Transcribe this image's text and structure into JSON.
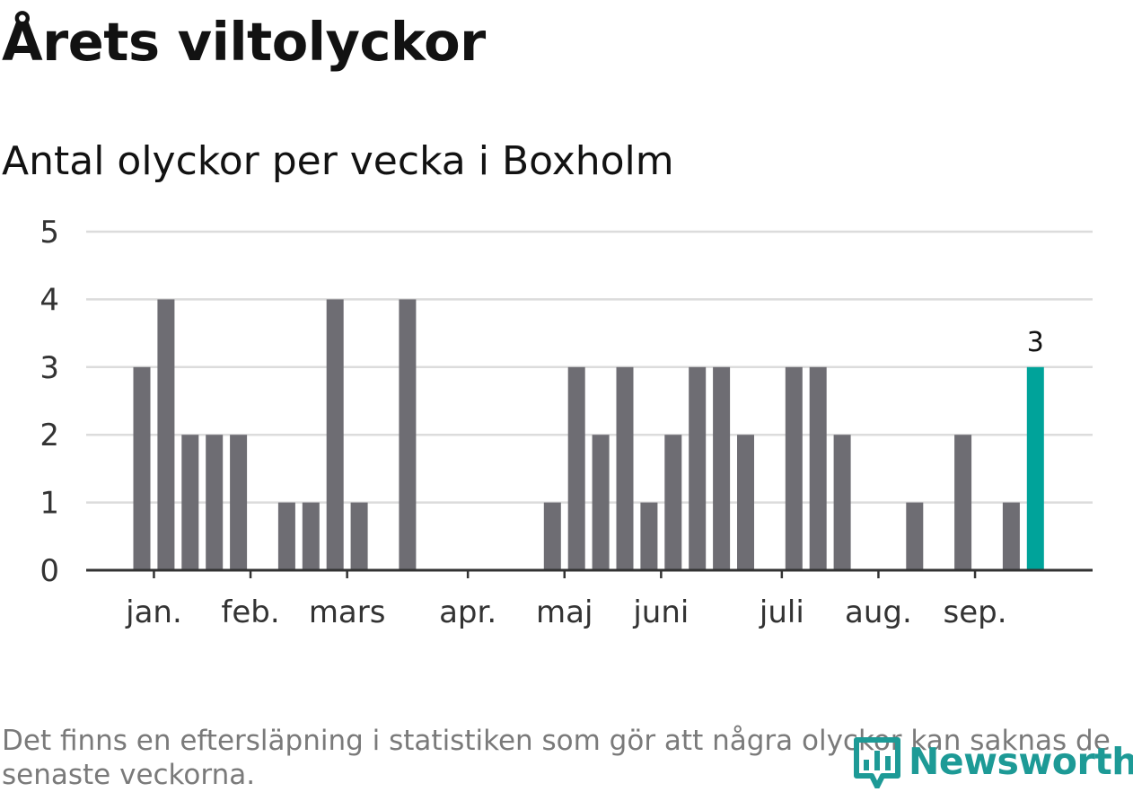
{
  "title": "Årets viltolyckor",
  "subtitle": "Antal olyckor per vecka i Boxholm",
  "footnote": "Det finns en eftersläpning i statistiken som gör att några olyckor kan saknas de senaste veckorna.",
  "logo": {
    "text": "Newsworthy",
    "icon": "bar-chart-pin-icon"
  },
  "colors": {
    "bar": "#6e6d73",
    "highlight": "#00a39a",
    "grid": "#dcdcdc",
    "axis": "#333333",
    "tick_text": "#333333",
    "logo": "#1d9a96"
  },
  "chart_data": {
    "type": "bar",
    "title": "Antal olyckor per vecka i Boxholm",
    "xlabel": "",
    "ylabel": "",
    "ylim": [
      0,
      5
    ],
    "yticks": [
      0,
      1,
      2,
      3,
      4,
      5
    ],
    "grid": true,
    "weeks": [
      1,
      2,
      3,
      4,
      5,
      6,
      7,
      8,
      9,
      10,
      11,
      12,
      13,
      14,
      15,
      16,
      17,
      18,
      19,
      20,
      21,
      22,
      23,
      24,
      25,
      26,
      27,
      28,
      29,
      30,
      31,
      32,
      33,
      34,
      35,
      36,
      37,
      38
    ],
    "values": [
      3,
      4,
      2,
      2,
      2,
      0,
      1,
      1,
      4,
      1,
      0,
      4,
      0,
      0,
      0,
      0,
      0,
      1,
      3,
      2,
      3,
      1,
      2,
      3,
      3,
      2,
      0,
      3,
      3,
      2,
      0,
      0,
      1,
      0,
      2,
      0,
      1,
      3
    ],
    "highlight_index": 37,
    "highlight_label": "3",
    "month_ticks": [
      {
        "label": "jan.",
        "week": 1.5
      },
      {
        "label": "feb.",
        "week": 5.5
      },
      {
        "label": "mars",
        "week": 9.5
      },
      {
        "label": "apr.",
        "week": 14.5
      },
      {
        "label": "maj",
        "week": 18.5
      },
      {
        "label": "juni",
        "week": 22.5
      },
      {
        "label": "juli",
        "week": 27.5
      },
      {
        "label": "aug.",
        "week": 31.5
      },
      {
        "label": "sep.",
        "week": 35.5
      }
    ]
  }
}
